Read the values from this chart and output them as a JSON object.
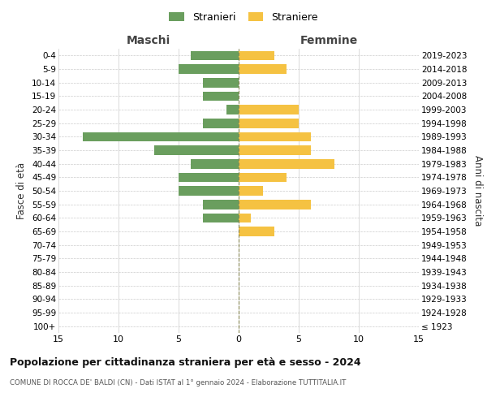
{
  "age_groups": [
    "100+",
    "95-99",
    "90-94",
    "85-89",
    "80-84",
    "75-79",
    "70-74",
    "65-69",
    "60-64",
    "55-59",
    "50-54",
    "45-49",
    "40-44",
    "35-39",
    "30-34",
    "25-29",
    "20-24",
    "15-19",
    "10-14",
    "5-9",
    "0-4"
  ],
  "birth_years": [
    "≤ 1923",
    "1924-1928",
    "1929-1933",
    "1934-1938",
    "1939-1943",
    "1944-1948",
    "1949-1953",
    "1954-1958",
    "1959-1963",
    "1964-1968",
    "1969-1973",
    "1974-1978",
    "1979-1983",
    "1984-1988",
    "1989-1993",
    "1994-1998",
    "1999-2003",
    "2004-2008",
    "2009-2013",
    "2014-2018",
    "2019-2023"
  ],
  "males": [
    0,
    0,
    0,
    0,
    0,
    0,
    0,
    0,
    3,
    3,
    5,
    5,
    4,
    7,
    13,
    3,
    1,
    3,
    3,
    5,
    4
  ],
  "females": [
    0,
    0,
    0,
    0,
    0,
    0,
    0,
    3,
    1,
    6,
    2,
    4,
    8,
    6,
    6,
    5,
    5,
    0,
    0,
    4,
    3
  ],
  "male_color": "#6a9e5e",
  "female_color": "#f5c242",
  "title": "Popolazione per cittadinanza straniera per età e sesso - 2024",
  "subtitle": "COMUNE DI ROCCA DE' BALDI (CN) - Dati ISTAT al 1° gennaio 2024 - Elaborazione TUTTITALIA.IT",
  "xlabel_left": "Maschi",
  "xlabel_right": "Femmine",
  "ylabel_left": "Fasce di età",
  "ylabel_right": "Anni di nascita",
  "legend_male": "Stranieri",
  "legend_female": "Straniere",
  "xlim": 15,
  "background_color": "#ffffff",
  "grid_color": "#cccccc"
}
